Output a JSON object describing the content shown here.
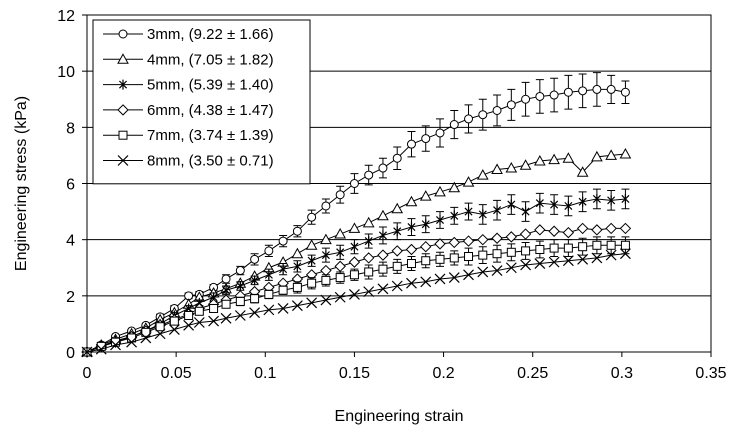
{
  "chart_data": {
    "type": "line",
    "xlabel": "Engineering strain",
    "ylabel": "Engineering stress (kPa)",
    "xlim": [
      0,
      0.35
    ],
    "ylim": [
      0,
      12
    ],
    "xticks": [
      0,
      0.05,
      0.1,
      0.15,
      0.2,
      0.25,
      0.3,
      0.35
    ],
    "yticks": [
      0,
      2,
      4,
      6,
      8,
      10,
      12
    ],
    "grid": "horizontal",
    "legend_position": "top-left",
    "line_color": "#000000",
    "series": [
      {
        "name": "3mm, (9.22 ± 1.66)",
        "marker": "circle",
        "x": [
          0,
          0.008,
          0.016,
          0.025,
          0.033,
          0.041,
          0.049,
          0.057,
          0.063,
          0.071,
          0.078,
          0.086,
          0.094,
          0.102,
          0.11,
          0.118,
          0.126,
          0.134,
          0.142,
          0.15,
          0.158,
          0.166,
          0.174,
          0.182,
          0.19,
          0.198,
          0.206,
          0.214,
          0.222,
          0.23,
          0.238,
          0.246,
          0.254,
          0.262,
          0.27,
          0.278,
          0.286,
          0.294,
          0.302
        ],
        "y": [
          0,
          0.25,
          0.55,
          0.75,
          0.95,
          1.25,
          1.55,
          2.0,
          2.05,
          2.3,
          2.6,
          2.9,
          3.3,
          3.6,
          3.95,
          4.3,
          4.8,
          5.2,
          5.6,
          6.0,
          6.3,
          6.55,
          6.9,
          7.4,
          7.6,
          7.8,
          8.1,
          8.3,
          8.45,
          8.6,
          8.8,
          9.0,
          9.1,
          9.15,
          9.25,
          9.3,
          9.35,
          9.35,
          9.25
        ],
        "error": [
          0,
          0.05,
          0.05,
          0.05,
          0.05,
          0.1,
          0.1,
          0.1,
          0.1,
          0.1,
          0.15,
          0.15,
          0.2,
          0.2,
          0.2,
          0.2,
          0.25,
          0.25,
          0.3,
          0.35,
          0.35,
          0.35,
          0.4,
          0.45,
          0.45,
          0.5,
          0.5,
          0.5,
          0.55,
          0.55,
          0.55,
          0.6,
          0.6,
          0.6,
          0.6,
          0.6,
          0.6,
          0.5,
          0.4
        ]
      },
      {
        "name": "4mm, (7.05 ± 1.82)",
        "marker": "triangle",
        "x": [
          0,
          0.008,
          0.016,
          0.025,
          0.033,
          0.041,
          0.049,
          0.057,
          0.063,
          0.071,
          0.078,
          0.086,
          0.094,
          0.102,
          0.11,
          0.118,
          0.126,
          0.134,
          0.142,
          0.15,
          0.158,
          0.166,
          0.174,
          0.182,
          0.19,
          0.198,
          0.206,
          0.214,
          0.222,
          0.23,
          0.238,
          0.246,
          0.254,
          0.262,
          0.27,
          0.278,
          0.286,
          0.294,
          0.302
        ],
        "y": [
          0,
          0.25,
          0.45,
          0.65,
          0.85,
          1.15,
          1.4,
          1.7,
          1.95,
          2.1,
          2.25,
          2.45,
          2.7,
          3.0,
          3.2,
          3.5,
          3.8,
          4.0,
          4.2,
          4.4,
          4.6,
          4.85,
          5.1,
          5.35,
          5.55,
          5.7,
          5.85,
          6.05,
          6.3,
          6.5,
          6.55,
          6.65,
          6.8,
          6.85,
          6.9,
          6.4,
          6.95,
          7.0,
          7.05
        ],
        "error": []
      },
      {
        "name": "5mm, (5.39 ± 1.40)",
        "marker": "asterisk",
        "x": [
          0,
          0.008,
          0.016,
          0.025,
          0.033,
          0.041,
          0.049,
          0.057,
          0.063,
          0.071,
          0.078,
          0.086,
          0.094,
          0.102,
          0.11,
          0.118,
          0.126,
          0.134,
          0.142,
          0.15,
          0.158,
          0.166,
          0.174,
          0.182,
          0.19,
          0.198,
          0.206,
          0.214,
          0.222,
          0.23,
          0.238,
          0.246,
          0.254,
          0.262,
          0.27,
          0.278,
          0.286,
          0.294,
          0.302
        ],
        "y": [
          0,
          0.2,
          0.4,
          0.55,
          0.75,
          1.0,
          1.3,
          1.55,
          1.75,
          1.95,
          2.2,
          2.35,
          2.55,
          2.75,
          2.95,
          3.05,
          3.25,
          3.45,
          3.55,
          3.75,
          3.95,
          4.15,
          4.3,
          4.45,
          4.55,
          4.7,
          4.85,
          5.0,
          4.9,
          5.05,
          5.25,
          5.0,
          5.3,
          5.25,
          5.2,
          5.35,
          5.45,
          5.4,
          5.45
        ],
        "error": [
          0,
          0.05,
          0.05,
          0.05,
          0.05,
          0.1,
          0.1,
          0.1,
          0.1,
          0.15,
          0.15,
          0.15,
          0.15,
          0.2,
          0.2,
          0.2,
          0.2,
          0.25,
          0.25,
          0.25,
          0.25,
          0.3,
          0.3,
          0.3,
          0.3,
          0.3,
          0.3,
          0.3,
          0.35,
          0.35,
          0.35,
          0.35,
          0.35,
          0.35,
          0.35,
          0.35,
          0.35,
          0.35,
          0.35
        ]
      },
      {
        "name": "6mm, (4.38 ± 1.47)",
        "marker": "diamond",
        "x": [
          0,
          0.008,
          0.016,
          0.025,
          0.033,
          0.041,
          0.049,
          0.057,
          0.063,
          0.071,
          0.078,
          0.086,
          0.094,
          0.102,
          0.11,
          0.118,
          0.126,
          0.134,
          0.142,
          0.15,
          0.158,
          0.166,
          0.174,
          0.182,
          0.19,
          0.198,
          0.206,
          0.214,
          0.222,
          0.23,
          0.238,
          0.246,
          0.254,
          0.262,
          0.27,
          0.278,
          0.286,
          0.294,
          0.302
        ],
        "y": [
          0,
          0.2,
          0.35,
          0.55,
          0.75,
          0.95,
          1.15,
          1.35,
          1.55,
          1.7,
          1.85,
          2.0,
          2.15,
          2.3,
          2.45,
          2.6,
          2.75,
          2.9,
          3.05,
          3.2,
          3.35,
          3.45,
          3.6,
          3.65,
          3.75,
          3.85,
          3.9,
          3.95,
          4.0,
          4.05,
          4.1,
          4.2,
          4.35,
          4.3,
          4.25,
          4.4,
          4.35,
          4.4,
          4.4
        ],
        "error": []
      },
      {
        "name": "7mm, (3.74 ± 1.39)",
        "marker": "square",
        "x": [
          0,
          0.008,
          0.016,
          0.025,
          0.033,
          0.041,
          0.049,
          0.057,
          0.063,
          0.071,
          0.078,
          0.086,
          0.094,
          0.102,
          0.11,
          0.118,
          0.126,
          0.134,
          0.142,
          0.15,
          0.158,
          0.166,
          0.174,
          0.182,
          0.19,
          0.198,
          0.206,
          0.214,
          0.222,
          0.23,
          0.238,
          0.246,
          0.254,
          0.262,
          0.27,
          0.278,
          0.286,
          0.294,
          0.302
        ],
        "y": [
          0,
          0.2,
          0.35,
          0.5,
          0.7,
          0.9,
          1.1,
          1.3,
          1.45,
          1.55,
          1.7,
          1.8,
          1.9,
          2.05,
          2.2,
          2.3,
          2.45,
          2.55,
          2.65,
          2.75,
          2.85,
          2.95,
          3.05,
          3.15,
          3.25,
          3.3,
          3.35,
          3.4,
          3.45,
          3.5,
          3.55,
          3.6,
          3.65,
          3.7,
          3.7,
          3.75,
          3.8,
          3.8,
          3.8
        ],
        "error": [
          0,
          0.05,
          0.05,
          0.05,
          0.05,
          0.05,
          0.1,
          0.1,
          0.1,
          0.1,
          0.1,
          0.15,
          0.15,
          0.15,
          0.15,
          0.2,
          0.2,
          0.2,
          0.2,
          0.2,
          0.25,
          0.25,
          0.25,
          0.25,
          0.25,
          0.25,
          0.25,
          0.3,
          0.3,
          0.3,
          0.3,
          0.3,
          0.3,
          0.3,
          0.3,
          0.3,
          0.3,
          0.3,
          0.3
        ]
      },
      {
        "name": "8mm, (3.50 ± 0.71)",
        "marker": "cross",
        "x": [
          0,
          0.008,
          0.016,
          0.025,
          0.033,
          0.041,
          0.049,
          0.057,
          0.063,
          0.071,
          0.078,
          0.086,
          0.094,
          0.102,
          0.11,
          0.118,
          0.126,
          0.134,
          0.142,
          0.15,
          0.158,
          0.166,
          0.174,
          0.182,
          0.19,
          0.198,
          0.206,
          0.214,
          0.222,
          0.23,
          0.238,
          0.246,
          0.254,
          0.262,
          0.27,
          0.278,
          0.286,
          0.294,
          0.302
        ],
        "y": [
          0,
          0.1,
          0.25,
          0.35,
          0.5,
          0.65,
          0.8,
          0.95,
          1.05,
          1.1,
          1.2,
          1.3,
          1.4,
          1.5,
          1.55,
          1.65,
          1.75,
          1.85,
          1.95,
          2.05,
          2.15,
          2.25,
          2.35,
          2.45,
          2.5,
          2.6,
          2.65,
          2.75,
          2.85,
          2.9,
          3.0,
          3.1,
          3.15,
          3.2,
          3.25,
          3.3,
          3.35,
          3.45,
          3.5
        ],
        "error": []
      }
    ]
  }
}
